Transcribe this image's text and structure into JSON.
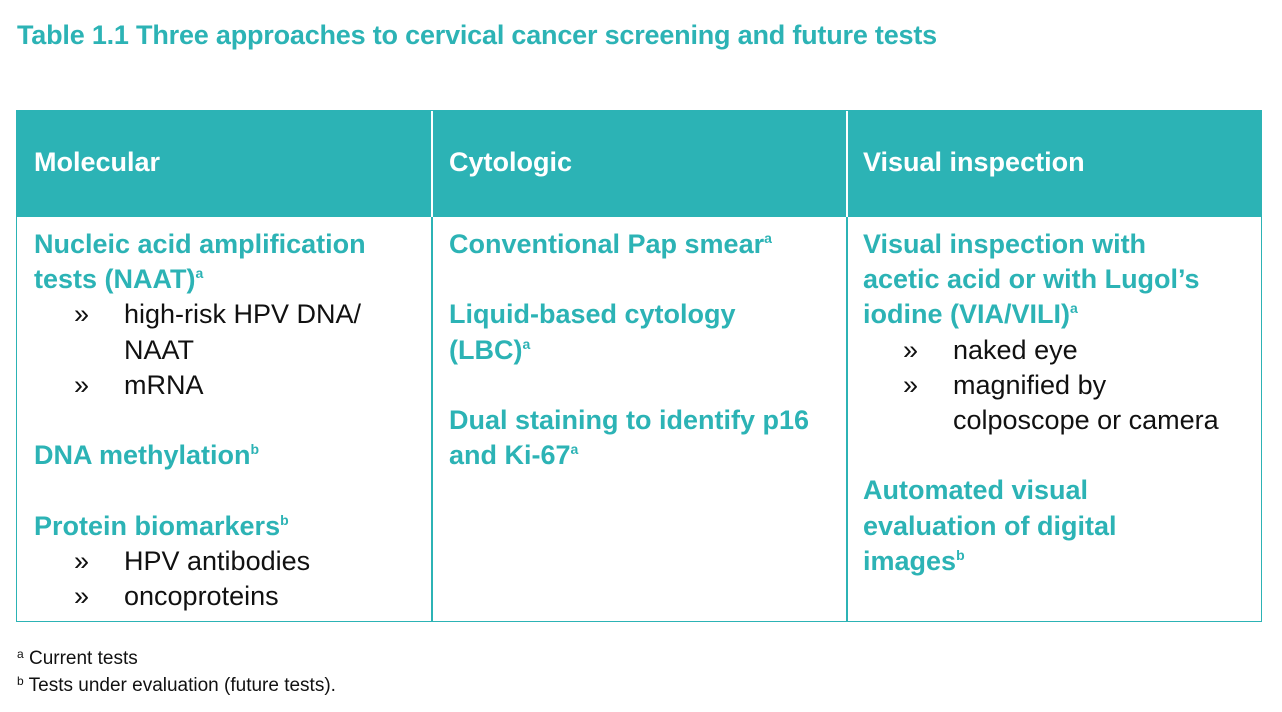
{
  "title": "Table 1.1 Three approaches to cervical cancer screening and future tests",
  "columns": {
    "molecular": "Molecular",
    "cytologic": "Cytologic",
    "visual": "Visual inspection"
  },
  "molecular": {
    "naat_line1": "Nucleic acid amplification",
    "naat_line2": "tests (NAAT)",
    "naat_sup": "a",
    "naat_bullets": [
      "high-risk HPV DNA/",
      "NAAT",
      "mRNA"
    ],
    "dna_meth": "DNA methylation",
    "dna_meth_sup": "b",
    "protein": "Protein biomarkers",
    "protein_sup": "b",
    "protein_bullets": [
      "HPV antibodies",
      "oncoproteins"
    ]
  },
  "cytologic": {
    "pap": "Conventional Pap smear",
    "pap_sup": "a",
    "lbc_line1": "Liquid-based cytology",
    "lbc_line2": "(LBC)",
    "lbc_sup": "a",
    "dual_line1": "Dual staining to identify p16",
    "dual_line2": "and Ki-67",
    "dual_sup": "a"
  },
  "visual": {
    "via_line1": "Visual inspection with",
    "via_line2": "acetic acid or with Lugol’s",
    "via_line3": "iodine (VIA/VILI)",
    "via_sup": "a",
    "via_bullets": [
      "naked eye",
      "magnified by",
      "colposcope or camera"
    ],
    "auto_line1": "Automated visual",
    "auto_line2": "evaluation of digital",
    "auto_line3": "images",
    "auto_sup": "b"
  },
  "bullet_mark": "»",
  "footnotes": [
    {
      "sup": "a",
      "text": " Current tests"
    },
    {
      "sup": "b",
      "text": " Tests under evaluation (future tests)."
    }
  ]
}
